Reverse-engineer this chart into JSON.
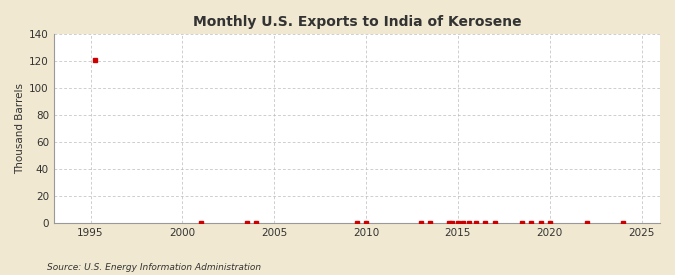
{
  "title": "Monthly U.S. Exports to India of Kerosene",
  "ylabel": "Thousand Barrels",
  "source_text": "Source: U.S. Energy Information Administration",
  "background_color": "#f0e8d0",
  "plot_bg_color": "#ffffff",
  "grid_color": "#bbbbbb",
  "axis_color": "#333333",
  "marker_color": "#cc0000",
  "spine_color": "#999999",
  "xlim": [
    1993,
    2026
  ],
  "ylim": [
    0,
    140
  ],
  "yticks": [
    0,
    20,
    40,
    60,
    80,
    100,
    120,
    140
  ],
  "xticks": [
    1995,
    2000,
    2005,
    2010,
    2015,
    2020,
    2025
  ],
  "data_points": [
    [
      1995.25,
      121
    ],
    [
      2001.0,
      0
    ],
    [
      2003.5,
      0
    ],
    [
      2004.0,
      0
    ],
    [
      2009.5,
      0
    ],
    [
      2010.0,
      0
    ],
    [
      2013.0,
      0
    ],
    [
      2013.5,
      0
    ],
    [
      2014.5,
      0
    ],
    [
      2014.7,
      0
    ],
    [
      2015.0,
      0
    ],
    [
      2015.3,
      0
    ],
    [
      2015.6,
      0
    ],
    [
      2016.0,
      0
    ],
    [
      2016.5,
      0
    ],
    [
      2017.0,
      0
    ],
    [
      2018.5,
      0
    ],
    [
      2019.0,
      0
    ],
    [
      2019.5,
      0
    ],
    [
      2020.0,
      0
    ],
    [
      2022.0,
      0
    ],
    [
      2024.0,
      0
    ]
  ]
}
